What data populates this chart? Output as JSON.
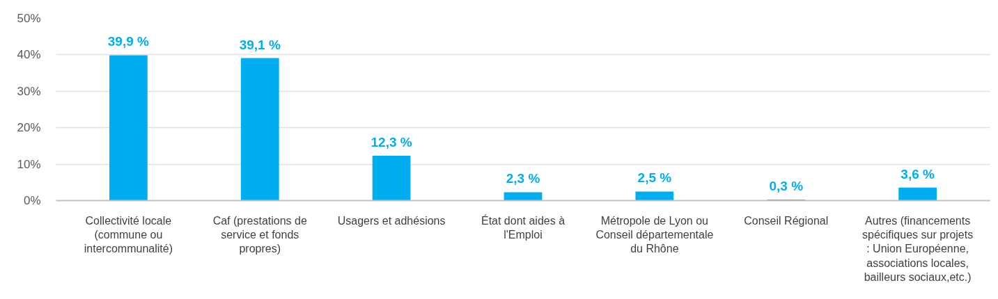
{
  "chart_data": {
    "type": "bar",
    "categories": [
      "Collectivité locale (commune ou intercommunalité)",
      "Caf (prestations de service et fonds propres)",
      "Usagers et adhésions",
      "État dont aides à l'Emploi",
      "Métropole de Lyon ou Conseil départementale du Rhône",
      "Conseil Régional",
      "Autres (financements spécifiques sur projets : Union Européenne, associations locales, bailleurs sociaux,etc.)"
    ],
    "values": [
      39.9,
      39.1,
      12.3,
      2.3,
      2.5,
      0.3,
      3.6
    ],
    "value_labels": [
      "39,9 %",
      "39,1 %",
      "12,3 %",
      "2,3 %",
      "2,5 %",
      "0,3 %",
      "3,6 %"
    ],
    "color": "#00adef",
    "ylim": [
      0,
      50
    ],
    "yticks": [
      {
        "value": 0,
        "label": "0%"
      },
      {
        "value": 10,
        "label": "10%"
      },
      {
        "value": 20,
        "label": "20%"
      },
      {
        "value": 30,
        "label": "30%"
      },
      {
        "value": 40,
        "label": "40%"
      },
      {
        "value": 50,
        "label": "50%"
      }
    ],
    "grid": "y"
  }
}
